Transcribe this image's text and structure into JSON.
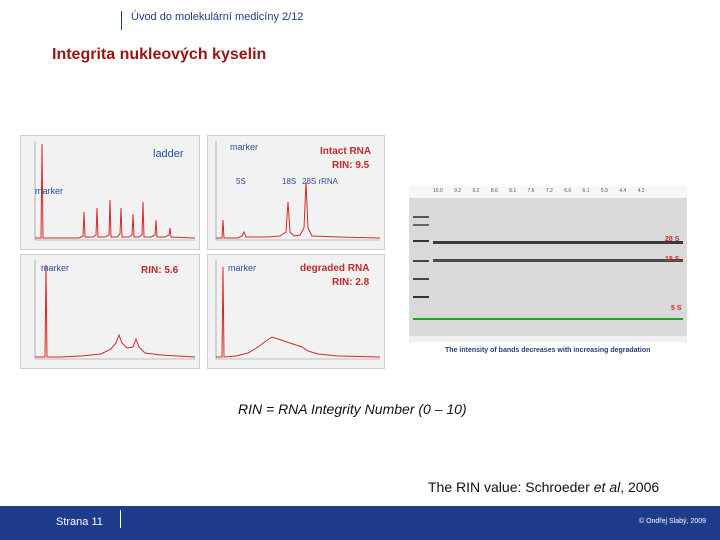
{
  "header": {
    "text": "Úvod do molekulární medicíny 2/12"
  },
  "slide": {
    "title": "Integrita nukleových kyselin"
  },
  "panels": {
    "ladder": {
      "label": "ladder",
      "marker": "marker"
    },
    "intact": {
      "marker": "marker",
      "title": "Intact RNA",
      "rin": "RIN:  9.5",
      "peak_labels": [
        "5S",
        "18S",
        "28S rRNA"
      ]
    },
    "mid": {
      "marker": "marker",
      "rin": "RIN:  5.6"
    },
    "degraded": {
      "marker": "marker",
      "title": "degraded RNA",
      "rin": "RIN:  2.8"
    }
  },
  "gel": {
    "rin_values": [
      "10.0",
      "9.2",
      "9.2",
      "8.6",
      "8.1",
      "7.6",
      "7.2",
      "6.6",
      "6.1",
      "5.9",
      "4.4",
      "4.2"
    ],
    "band_labels": [
      "28 S",
      "18 S",
      "5 S"
    ],
    "caption": "The intensity of bands decreases with increasing degradation"
  },
  "caption": "RIN = RNA Integrity Number (0 – 10)",
  "citation": {
    "prefix": "The RIN value: Schroeder ",
    "et_al": "et al",
    "suffix": ", 2006"
  },
  "footer": {
    "page": "Strana 11",
    "copyright": "© Ondřej Slabý, 2009"
  },
  "colors": {
    "header_blue": "#1f3b8c",
    "title_red": "#9b1414",
    "trace_red": "#d42a2a",
    "marker_green": "#1fa51f"
  }
}
